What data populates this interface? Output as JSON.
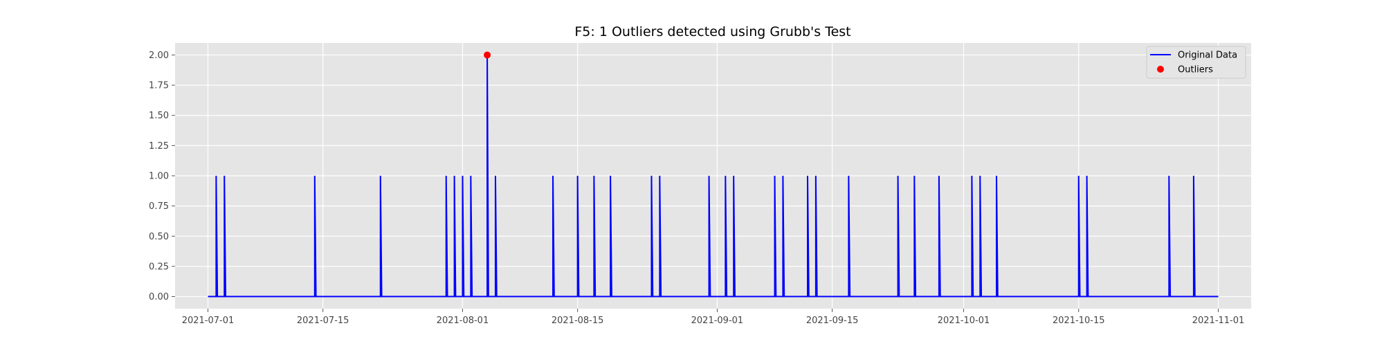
{
  "chart_data": {
    "type": "line",
    "title": "F5: 1 Outliers detected using Grubb's Test",
    "xlabel": "",
    "ylabel": "",
    "x_range": [
      "2021-06-27",
      "2021-11-05"
    ],
    "ylim": [
      -0.1,
      2.1
    ],
    "x_ticks": [
      "2021-07-01",
      "2021-07-15",
      "2021-08-01",
      "2021-08-15",
      "2021-09-01",
      "2021-09-15",
      "2021-10-01",
      "2021-10-15",
      "2021-11-01"
    ],
    "y_ticks": [
      "0.00",
      "0.25",
      "0.50",
      "0.75",
      "1.00",
      "1.25",
      "1.50",
      "1.75",
      "2.00"
    ],
    "grid": true,
    "legend_position": "top-right",
    "series": [
      {
        "name": "Original Data",
        "color": "#0000ff",
        "baseline": 0,
        "start": "2021-07-01",
        "end": "2021-11-01",
        "spikes": [
          {
            "x": "2021-07-02",
            "y": 1
          },
          {
            "x": "2021-07-03",
            "y": 1
          },
          {
            "x": "2021-07-14",
            "y": 1
          },
          {
            "x": "2021-07-22",
            "y": 1
          },
          {
            "x": "2021-07-30",
            "y": 1
          },
          {
            "x": "2021-07-31",
            "y": 1
          },
          {
            "x": "2021-08-01",
            "y": 1
          },
          {
            "x": "2021-08-02",
            "y": 1
          },
          {
            "x": "2021-08-04",
            "y": 2
          },
          {
            "x": "2021-08-05",
            "y": 1
          },
          {
            "x": "2021-08-12",
            "y": 1
          },
          {
            "x": "2021-08-15",
            "y": 1
          },
          {
            "x": "2021-08-17",
            "y": 1
          },
          {
            "x": "2021-08-19",
            "y": 1
          },
          {
            "x": "2021-08-24",
            "y": 1
          },
          {
            "x": "2021-08-25",
            "y": 1
          },
          {
            "x": "2021-08-31",
            "y": 1
          },
          {
            "x": "2021-09-02",
            "y": 1
          },
          {
            "x": "2021-09-03",
            "y": 1
          },
          {
            "x": "2021-09-08",
            "y": 1
          },
          {
            "x": "2021-09-09",
            "y": 1
          },
          {
            "x": "2021-09-12",
            "y": 1
          },
          {
            "x": "2021-09-13",
            "y": 1
          },
          {
            "x": "2021-09-17",
            "y": 1
          },
          {
            "x": "2021-09-23",
            "y": 1
          },
          {
            "x": "2021-09-25",
            "y": 1
          },
          {
            "x": "2021-09-28",
            "y": 1
          },
          {
            "x": "2021-10-02",
            "y": 1
          },
          {
            "x": "2021-10-03",
            "y": 1
          },
          {
            "x": "2021-10-05",
            "y": 1
          },
          {
            "x": "2021-10-15",
            "y": 1
          },
          {
            "x": "2021-10-16",
            "y": 1
          },
          {
            "x": "2021-10-26",
            "y": 1
          },
          {
            "x": "2021-10-29",
            "y": 1
          }
        ]
      },
      {
        "name": "Outliers",
        "color": "#ff0000",
        "points": [
          {
            "x": "2021-08-04",
            "y": 2
          }
        ]
      }
    ]
  }
}
